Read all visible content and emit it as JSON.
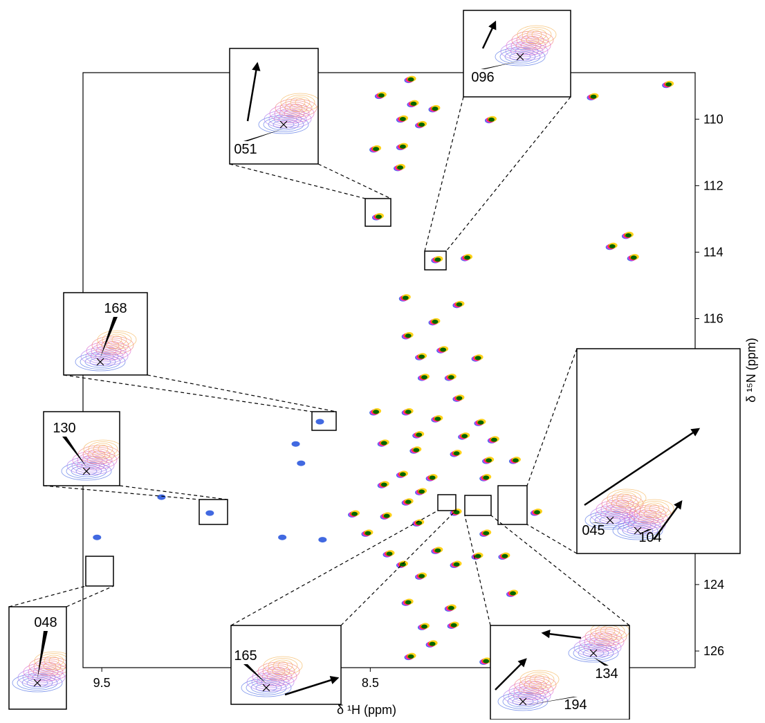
{
  "chart_data": {
    "type": "nmr-spectrum",
    "x_label": "δ ¹H (ppm)",
    "y_label": "δ ¹⁵N (ppm)",
    "xlim": [
      9.57,
      7.29
    ],
    "ylim": [
      108.6,
      126.5
    ],
    "xticks": [
      9.5,
      8.5
    ],
    "yticks": [
      110,
      112,
      114,
      116,
      124,
      126
    ],
    "colors": [
      "#4169e1",
      "#9b59f0",
      "#ff1fd0",
      "#ff2030",
      "#ff9a00",
      "#ffd21a",
      "#006400"
    ],
    "x": [
      8.35,
      8.46,
      8.34,
      8.26,
      8.38,
      8.31,
      8.05,
      8.48,
      8.38,
      8.39,
      8.47,
      8.25,
      8.14,
      7.67,
      7.39,
      7.6,
      7.54,
      7.52,
      8.37,
      8.17,
      8.26,
      8.36,
      8.23,
      8.31,
      8.1,
      8.3,
      8.2,
      8.17,
      8.48,
      8.36,
      8.25,
      8.09,
      8.32,
      8.15,
      8.04,
      8.45,
      8.33,
      8.18,
      8.06,
      7.96,
      8.75,
      9.27,
      8.38,
      8.27,
      8.07,
      8.45,
      8.31,
      8.36,
      8.56,
      8.44,
      8.18,
      7.88,
      8.51,
      8.32,
      8.07,
      8.43,
      8.25,
      8.1,
      8.0,
      8.38,
      8.18,
      8.31,
      8.36,
      8.2,
      7.97,
      8.3,
      8.19,
      8.27,
      8.35,
      8.07,
      8.67,
      9.09,
      9.51,
      8.68,
      8.82,
      8.77
    ],
    "y": [
      108.81,
      109.29,
      109.54,
      109.69,
      110.0,
      110.17,
      110.02,
      110.9,
      110.83,
      111.46,
      112.94,
      114.23,
      114.17,
      109.33,
      108.96,
      113.83,
      113.5,
      114.17,
      115.38,
      115.58,
      116.1,
      116.52,
      116.94,
      117.15,
      117.19,
      117.77,
      117.77,
      118.4,
      118.81,
      118.81,
      119.02,
      119.13,
      119.5,
      119.54,
      119.65,
      119.75,
      119.96,
      120.06,
      120.27,
      120.27,
      120.33,
      121.35,
      120.69,
      120.79,
      120.79,
      121.0,
      121.21,
      121.52,
      121.88,
      121.94,
      121.83,
      121.83,
      122.46,
      122.15,
      122.46,
      123.08,
      122.98,
      123.15,
      123.15,
      123.4,
      123.4,
      123.75,
      124.54,
      124.71,
      124.27,
      125.27,
      125.23,
      125.79,
      126.17,
      126.31,
      122.63,
      121.83,
      122.56,
      119.08,
      122.56,
      119.75
    ],
    "inset_labels": [
      "051",
      "096",
      "168",
      "130",
      "048",
      "165",
      "194",
      "134",
      "045",
      "104"
    ]
  }
}
